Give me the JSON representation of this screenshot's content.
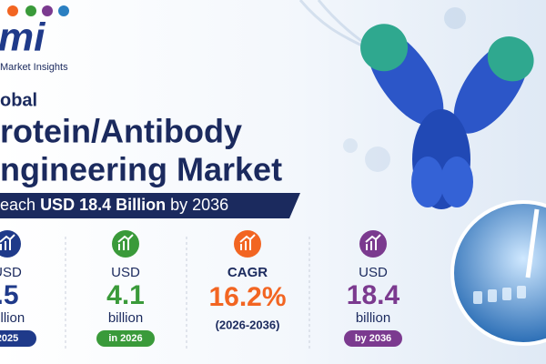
{
  "logo": {
    "mark": "mi",
    "tagline": "Market Insights"
  },
  "headline": {
    "line1": "obal",
    "line2": "rotein/Antibody",
    "line3": "ngineering Market"
  },
  "banner": {
    "lead": "each",
    "highlight": "USD 18.4 Billion",
    "tail": "by 2036"
  },
  "stats": [
    {
      "label": "USD",
      "value": ".5",
      "unit": "billion",
      "tag": "2025"
    },
    {
      "label": "USD",
      "value": "4.1",
      "unit": "billion",
      "tag": "in 2026"
    },
    {
      "label": "CAGR",
      "value": "16.2%",
      "unit": "(2026-2036)"
    },
    {
      "label": "USD",
      "value": "18.4",
      "unit": "billion",
      "tag": "by 2036"
    }
  ]
}
